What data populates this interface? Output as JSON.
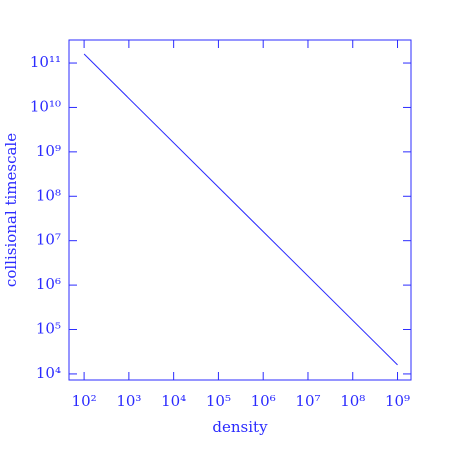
{
  "chart_data": {
    "type": "line",
    "x_label": "density",
    "y_label": "collisional timescale",
    "log_x": true,
    "log_y": true,
    "color": "#2b2bff",
    "x": [
      100,
      1000000000
    ],
    "values": [
      160000000000,
      16000
    ],
    "xlim": [
      46,
      2000000000
    ],
    "ylim": [
      7300,
      330000000000
    ],
    "xticks": [
      {
        "value": 100,
        "label": "10²"
      },
      {
        "value": 1000,
        "label": "10³"
      },
      {
        "value": 10000,
        "label": "10⁴"
      },
      {
        "value": 100000,
        "label": "10⁵"
      },
      {
        "value": 1000000,
        "label": "10⁶"
      },
      {
        "value": 10000000,
        "label": "10⁷"
      },
      {
        "value": 100000000,
        "label": "10⁸"
      },
      {
        "value": 1000000000,
        "label": "10⁹"
      }
    ],
    "yticks": [
      {
        "value": 10000,
        "label": "10⁴"
      },
      {
        "value": 100000,
        "label": "10⁵"
      },
      {
        "value": 1000000,
        "label": "10⁶"
      },
      {
        "value": 10000000,
        "label": "10⁷"
      },
      {
        "value": 100000000,
        "label": "10⁸"
      },
      {
        "value": 1000000000,
        "label": "10⁹"
      },
      {
        "value": 10000000000,
        "label": "10¹⁰"
      },
      {
        "value": 100000000000,
        "label": "10¹¹"
      }
    ]
  }
}
